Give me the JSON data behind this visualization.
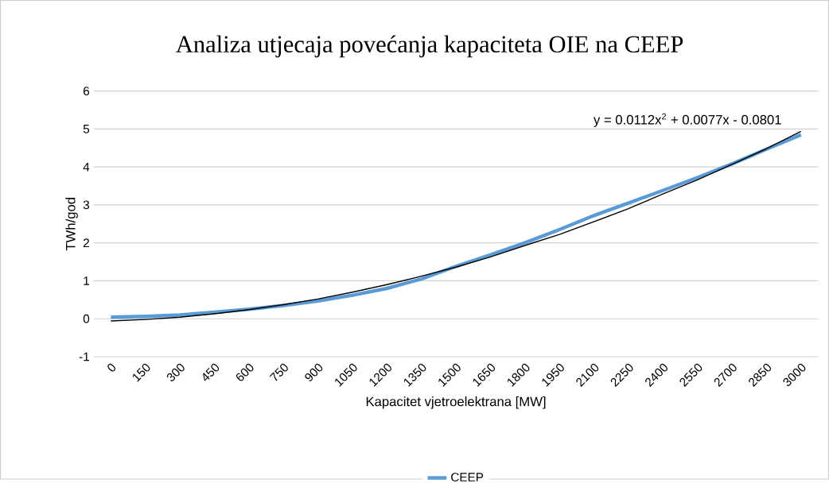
{
  "chart_data": {
    "type": "line",
    "title": "Analiza utjecaja povećanja kapaciteta OIE na CEEP",
    "xlabel": "Kapacitet vjetroelektrana [MW]",
    "ylabel": "TWh/god",
    "categories": [
      "0",
      "150",
      "300",
      "450",
      "600",
      "750",
      "900",
      "1050",
      "1200",
      "1350",
      "1500",
      "1650",
      "1800",
      "1950",
      "2100",
      "2250",
      "2400",
      "2550",
      "2700",
      "2850",
      "3000"
    ],
    "series": [
      {
        "name": "CEEP",
        "color": "#5b9bd5",
        "values": [
          0.04,
          0.06,
          0.1,
          0.17,
          0.25,
          0.35,
          0.47,
          0.62,
          0.8,
          1.05,
          1.38,
          1.68,
          2.0,
          2.35,
          2.72,
          3.05,
          3.38,
          3.72,
          4.08,
          4.47,
          4.85
        ]
      },
      {
        "type": "line",
        "color": "#000000",
        "values": [
          -0.06,
          -0.02,
          0.04,
          0.13,
          0.24,
          0.37,
          0.52,
          0.7,
          0.9,
          1.12,
          1.36,
          1.63,
          1.93,
          2.22,
          2.56,
          2.9,
          3.29,
          3.66,
          4.07,
          4.48,
          4.94
        ]
      }
    ],
    "ylim": [
      -1,
      6
    ],
    "yticks": [
      -1,
      0,
      1,
      2,
      3,
      4,
      5,
      6
    ],
    "grid": "y",
    "legend": "bottom",
    "marker": "none",
    "line_style": "solid",
    "annotations": [
      "y = 0.0112x$^{2}$ + 0.0077x - 0.0801"
    ]
  }
}
